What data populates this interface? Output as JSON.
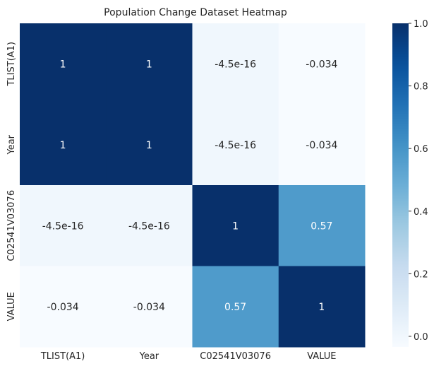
{
  "chart_data": {
    "type": "heatmap",
    "title": "Population Change Dataset Heatmap",
    "x_labels": [
      "TLIST(A1)",
      "Year",
      "C02541V03076",
      "VALUE"
    ],
    "y_labels": [
      "TLIST(A1)",
      "Year",
      "C02541V03076",
      "VALUE"
    ],
    "values": [
      [
        1,
        1,
        -4.5e-16,
        -0.034
      ],
      [
        1,
        1,
        -4.5e-16,
        -0.034
      ],
      [
        -4.5e-16,
        -4.5e-16,
        1,
        0.57
      ],
      [
        -0.034,
        -0.034,
        0.57,
        1
      ]
    ],
    "annotations": [
      [
        "1",
        "1",
        "-4.5e-16",
        "-0.034"
      ],
      [
        "1",
        "1",
        "-4.5e-16",
        "-0.034"
      ],
      [
        "-4.5e-16",
        "-4.5e-16",
        "1",
        "0.57"
      ],
      [
        "-0.034",
        "-0.034",
        "0.57",
        "1"
      ]
    ],
    "colormap": "Blues",
    "vmin": -0.034,
    "vmax": 1,
    "colorbar_ticks": [
      0.0,
      0.2,
      0.4,
      0.6,
      0.8,
      1.0
    ],
    "colorbar_tick_labels": [
      "0.0",
      "0.2",
      "0.4",
      "0.6",
      "0.8",
      "1.0"
    ],
    "colors": {
      "low": "#f7fbff",
      "mid": "#6baed6",
      "high": "#08306b",
      "text_dark": "#262626",
      "text_light": "#ffffff"
    }
  }
}
